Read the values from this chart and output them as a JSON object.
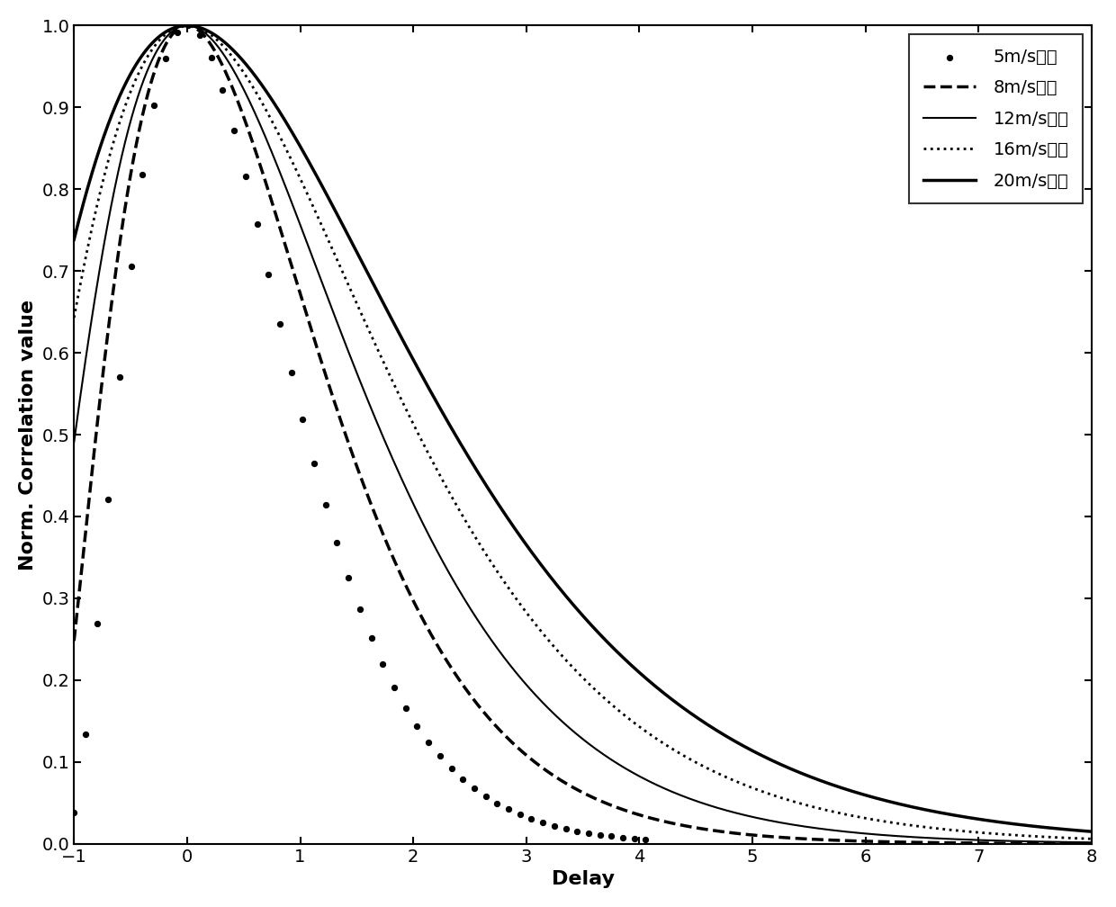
{
  "title": "",
  "xlabel": "Delay",
  "ylabel": "Norm. Correlation value",
  "xlim": [
    -1,
    8
  ],
  "ylim": [
    0,
    1
  ],
  "xticks": [
    -1,
    0,
    1,
    2,
    3,
    4,
    5,
    6,
    7,
    8
  ],
  "yticks": [
    0.0,
    0.1,
    0.2,
    0.3,
    0.4,
    0.5,
    0.6,
    0.7,
    0.8,
    0.9,
    1.0
  ],
  "curve_params": [
    {
      "alpha": 3.5,
      "beta": 0.45,
      "style": "dots",
      "label": "5m/s风速"
    },
    {
      "alpha": 3.0,
      "beta": 0.65,
      "style": "dashed",
      "label": "8m/s风速"
    },
    {
      "alpha": 3.0,
      "beta": 0.8,
      "style": "solid_thin",
      "label": "12m/s风速"
    },
    {
      "alpha": 3.0,
      "beta": 0.95,
      "style": "dotted",
      "label": "16m/s风速"
    },
    {
      "alpha": 3.0,
      "beta": 1.1,
      "style": "solid",
      "label": "20m/s风速"
    }
  ],
  "background_color": "#ffffff",
  "legend_loc": "upper right",
  "label_font_size": 16,
  "tick_font_size": 14,
  "legend_font_size": 14
}
